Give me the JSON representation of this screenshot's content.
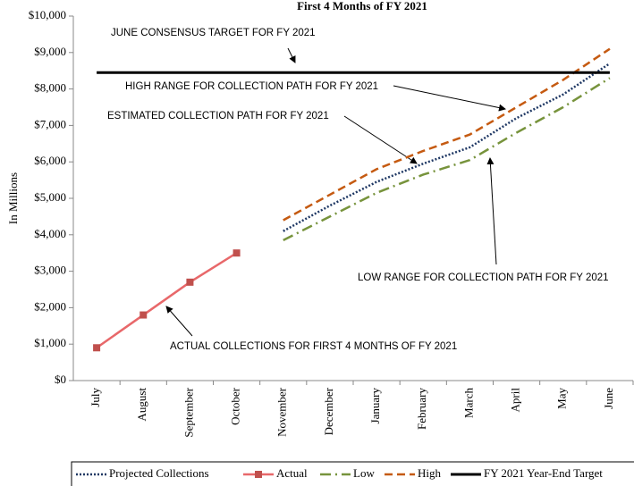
{
  "chart_data": {
    "type": "line",
    "title": "First 4 Months of FY 2021",
    "y_label": "In Millions",
    "categories": [
      "July",
      "August",
      "September",
      "October",
      "November",
      "December",
      "January",
      "February",
      "March",
      "April",
      "May",
      "June"
    ],
    "series": [
      {
        "name": "Projected Collections",
        "color": "#1f3864",
        "dash": "dot",
        "values": [
          null,
          null,
          null,
          null,
          4100,
          4800,
          5450,
          5950,
          6400,
          7200,
          7850,
          8700
        ]
      },
      {
        "name": "Actual",
        "color": "#e8686a",
        "marker_color": "#c0504d",
        "marker": "square",
        "dash": "solid",
        "values": [
          900,
          1800,
          2700,
          3500,
          null,
          null,
          null,
          null,
          null,
          null,
          null,
          null
        ]
      },
      {
        "name": "Low",
        "color": "#77933c",
        "dash": "dashdot",
        "values": [
          null,
          null,
          null,
          null,
          3850,
          4500,
          5150,
          5650,
          6050,
          6800,
          7500,
          8300
        ]
      },
      {
        "name": "High",
        "color": "#c55a11",
        "dash": "dash",
        "values": [
          null,
          null,
          null,
          null,
          4400,
          5100,
          5800,
          6300,
          6750,
          7500,
          8250,
          9100
        ]
      },
      {
        "name": "FY 2021 Year-End Target",
        "color": "#000000",
        "dash": "solid",
        "width": 3,
        "values": [
          8450,
          8450,
          8450,
          8450,
          8450,
          8450,
          8450,
          8450,
          8450,
          8450,
          8450,
          8450
        ]
      }
    ],
    "ylim": [
      0,
      10000
    ],
    "yticks": [
      {
        "value": 0,
        "label": "$0"
      },
      {
        "value": 1000,
        "label": "$1,000"
      },
      {
        "value": 2000,
        "label": "$2,000"
      },
      {
        "value": 3000,
        "label": "$3,000"
      },
      {
        "value": 4000,
        "label": "$4,000"
      },
      {
        "value": 5000,
        "label": "$5,000"
      },
      {
        "value": 6000,
        "label": "$6,000"
      },
      {
        "value": 7000,
        "label": "$7,000"
      },
      {
        "value": 8000,
        "label": "$8,000"
      },
      {
        "value": 9000,
        "label": "$9,000"
      },
      {
        "value": 10000,
        "label": "$10,000"
      }
    ],
    "grid": false,
    "legend": "bottom",
    "annotations": [
      "JUNE CONSENSUS TARGET FOR FY 2021",
      "HIGH RANGE FOR COLLECTION PATH FOR FY 2021",
      "ESTIMATED COLLECTION PATH FOR FY 2021",
      "LOW RANGE FOR COLLECTION PATH FOR FY 2021",
      "ACTUAL COLLECTIONS FOR FIRST 4 MONTHS OF FY 2021"
    ]
  }
}
